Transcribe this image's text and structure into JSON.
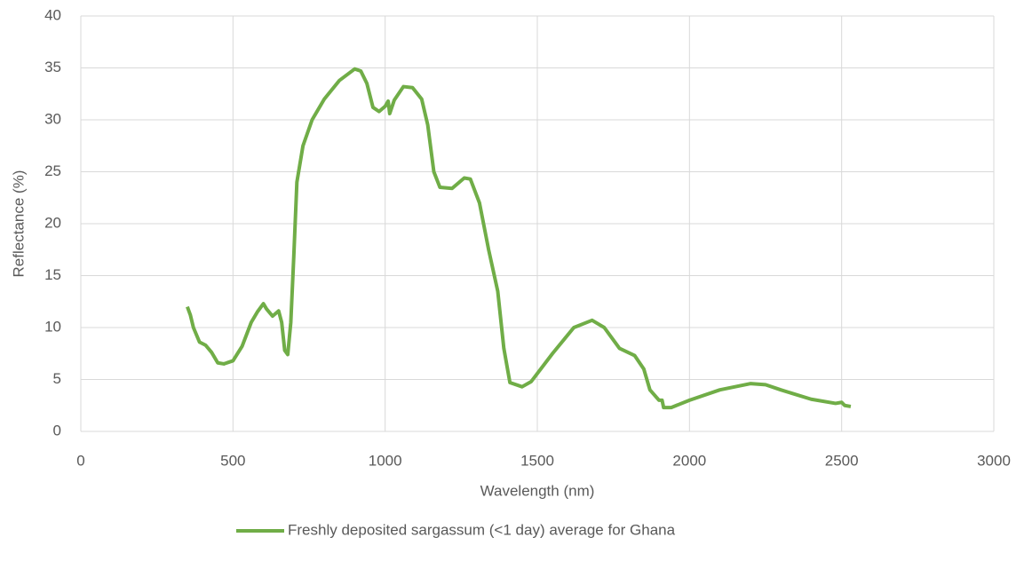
{
  "chart_data": {
    "type": "line",
    "xlabel": "Wavelength (nm)",
    "ylabel": "Reflectance (%)",
    "xlim": [
      0,
      3000
    ],
    "xticks": [
      0,
      500,
      1000,
      1500,
      2000,
      2500,
      3000
    ],
    "ylim": [
      0,
      40
    ],
    "yticks": [
      0,
      5,
      10,
      15,
      20,
      25,
      30,
      35,
      40
    ],
    "grid": true,
    "legend": "bottom",
    "x": [
      350,
      360,
      370,
      390,
      410,
      430,
      450,
      470,
      500,
      530,
      560,
      580,
      600,
      610,
      630,
      650,
      660,
      670,
      680,
      690,
      700,
      710,
      730,
      760,
      800,
      850,
      900,
      920,
      940,
      960,
      980,
      1000,
      1010,
      1015,
      1030,
      1060,
      1090,
      1120,
      1140,
      1160,
      1180,
      1220,
      1260,
      1280,
      1310,
      1340,
      1370,
      1390,
      1410,
      1450,
      1480,
      1550,
      1620,
      1680,
      1720,
      1770,
      1820,
      1850,
      1870,
      1900,
      1910,
      1915,
      1940,
      2000,
      2100,
      2200,
      2250,
      2300,
      2400,
      2480,
      2500,
      2510,
      2530
    ],
    "series": [
      {
        "name": "Freshly deposited sargassum (<1 day) average for Ghana",
        "color": "#70ad47",
        "values": [
          12.0,
          11.2,
          10.0,
          8.6,
          8.3,
          7.6,
          6.6,
          6.5,
          6.8,
          8.2,
          10.5,
          11.5,
          12.3,
          11.8,
          11.1,
          11.6,
          10.5,
          7.8,
          7.4,
          10.5,
          17,
          24,
          27.5,
          30,
          32,
          33.8,
          34.9,
          34.7,
          33.5,
          31.2,
          30.8,
          31.3,
          31.8,
          30.6,
          31.9,
          33.2,
          33.1,
          32,
          29.5,
          25,
          23.5,
          23.4,
          24.4,
          24.3,
          22,
          17.5,
          13.5,
          8,
          4.7,
          4.3,
          4.8,
          7.5,
          10.0,
          10.7,
          10.0,
          8.0,
          7.3,
          6.0,
          4.0,
          3.0,
          3.0,
          2.3,
          2.3,
          3.0,
          4.0,
          4.6,
          4.5,
          4.0,
          3.1,
          2.7,
          2.8,
          2.5,
          2.4
        ]
      }
    ]
  }
}
